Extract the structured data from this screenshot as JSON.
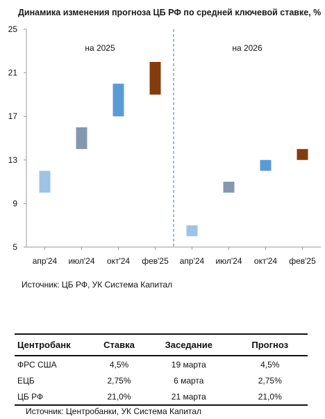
{
  "chart_data": {
    "type": "bar",
    "title": "Динамика изменения прогноза ЦБ РФ по средней ключевой ставке, %",
    "ylim": [
      5,
      25
    ],
    "yticks": [
      "5",
      "9",
      "13",
      "17",
      "21",
      "25"
    ],
    "groups": [
      "на 2025",
      "на 2026"
    ],
    "categories": [
      "апр'24",
      "июл'24",
      "окт'24",
      "фев'25",
      "апр'24",
      "июл'24",
      "окт'24",
      "фев'25"
    ],
    "series": [
      {
        "values": [
          [
            10,
            12
          ],
          [
            14,
            16
          ],
          [
            17,
            20
          ],
          [
            19,
            22
          ],
          [
            6,
            7
          ],
          [
            10,
            11
          ],
          [
            12,
            13
          ],
          [
            13,
            14
          ]
        ]
      }
    ],
    "colors": [
      "#9dc3e6",
      "#8497b0",
      "#5b9bd5",
      "#843c0c",
      "#9dc3e6",
      "#8497b0",
      "#5b9bd5",
      "#843c0c"
    ],
    "grid": false,
    "divider": "dashed"
  },
  "source1": "Источник: ЦБ РФ, УК Система Капитал",
  "table": {
    "headers": [
      "Центробанк",
      "Ставка",
      "Заседание",
      "Прогноз"
    ],
    "rows": [
      [
        "ФРС США",
        "4,5%",
        "19 марта",
        "4,5%"
      ],
      [
        "ЕЦБ",
        "2,75%",
        "6 марта",
        "2,75%"
      ],
      [
        "ЦБ РФ",
        "21,0%",
        "21 марта",
        "21,0%"
      ]
    ]
  },
  "source2": "Источник: Центробанки, УК Система Капитал"
}
